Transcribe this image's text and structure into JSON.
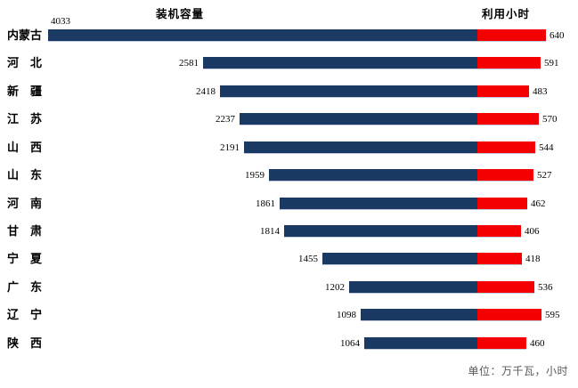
{
  "chart_data": {
    "type": "bar",
    "orientation": "horizontal-diverging",
    "categories": [
      "内蒙古",
      "河北",
      "新疆",
      "江苏",
      "山西",
      "山东",
      "河南",
      "甘肃",
      "宁夏",
      "广东",
      "辽宁",
      "陕西"
    ],
    "category_display": [
      "内蒙古",
      "河　北",
      "新　疆",
      "江　苏",
      "山　西",
      "山　东",
      "河　南",
      "甘　肃",
      "宁　夏",
      "广　东",
      "辽　宁",
      "陕　西"
    ],
    "series": [
      {
        "name": "装机容量",
        "side": "left",
        "color": "#1a3a64",
        "values": [
          4033,
          2581,
          2418,
          2237,
          2191,
          1959,
          1861,
          1814,
          1455,
          1202,
          1098,
          1064
        ]
      },
      {
        "name": "利用小时",
        "side": "right",
        "color": "#f40000",
        "values": [
          640,
          591,
          483,
          570,
          544,
          527,
          462,
          406,
          418,
          536,
          595,
          460
        ]
      }
    ],
    "left_title": "装机容量",
    "right_title": "利用小时",
    "note": "单位：万千瓦，小时",
    "value_labels": "outside-end",
    "axis": "hidden",
    "grid": false,
    "legend_position": "none"
  },
  "colors": {
    "background": "#ffffff",
    "capacity_bar": "#1a3a64",
    "hours_bar": "#f40000",
    "text": "#000000",
    "note_text": "#595959",
    "bar_edge": "#c4cde0"
  }
}
